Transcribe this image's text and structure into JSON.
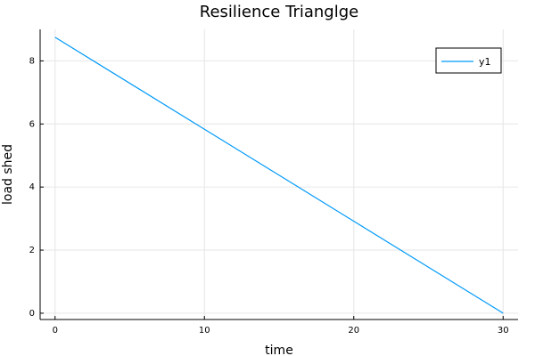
{
  "chart_data": {
    "type": "line",
    "title": "Resilience Trianglge",
    "xlabel": "time",
    "ylabel": "load shed",
    "xlim": [
      -1,
      31
    ],
    "ylim": [
      -0.2,
      9.0
    ],
    "xticks": [
      0,
      10,
      20,
      30
    ],
    "yticks": [
      0,
      2,
      4,
      6,
      8
    ],
    "xtick_labels": [
      "0",
      "10",
      "20",
      "30"
    ],
    "ytick_labels": [
      "0",
      "2",
      "4",
      "6",
      "8"
    ],
    "grid": true,
    "legend_position": "top-right",
    "series": [
      {
        "name": "y1",
        "color": "#009AFA",
        "x": [
          0,
          30
        ],
        "y": [
          8.75,
          0
        ]
      }
    ]
  }
}
